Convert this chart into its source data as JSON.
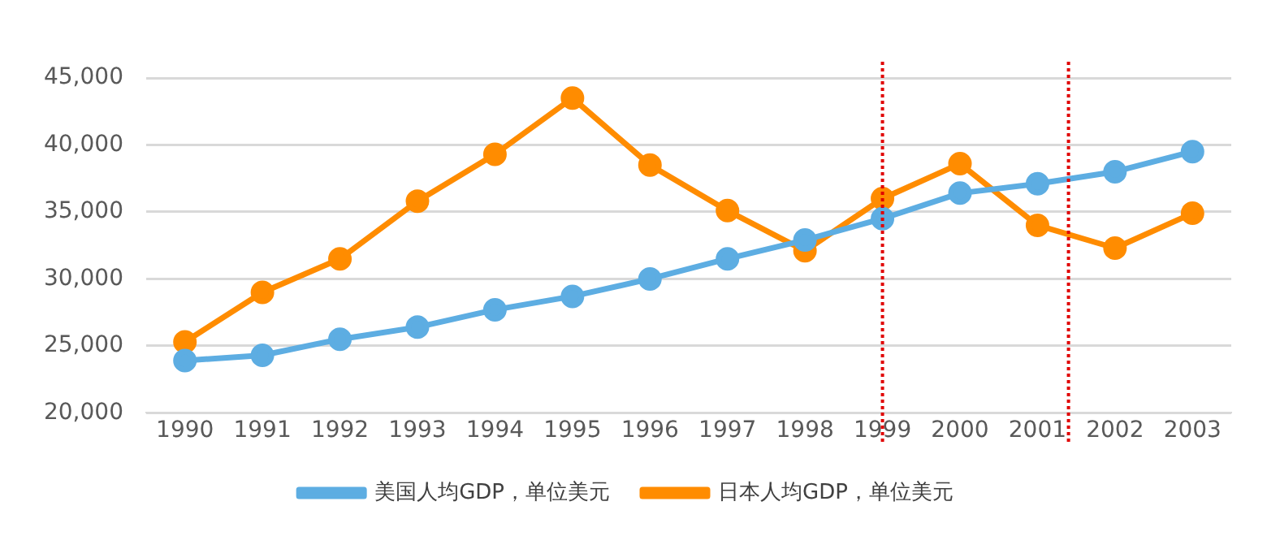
{
  "chart_data": {
    "type": "line",
    "x": [
      1990,
      1991,
      1992,
      1993,
      1994,
      1995,
      1996,
      1997,
      1998,
      1999,
      2000,
      2001,
      2002,
      2003
    ],
    "series": [
      {
        "name": "美国人均GDP，单位美元",
        "color": "#5dade2",
        "values": [
          23900,
          24300,
          25500,
          26400,
          27700,
          28700,
          30000,
          31500,
          32900,
          34500,
          36400,
          37100,
          38000,
          39500
        ]
      },
      {
        "name": "日本人均GDP，单位美元",
        "color": "#ff8c00",
        "values": [
          25300,
          29000,
          31500,
          35800,
          39300,
          43500,
          38500,
          35100,
          32100,
          36000,
          38600,
          34000,
          32300,
          34900
        ]
      }
    ],
    "xlim": [
      1989.5,
      2003.5
    ],
    "xticks": [
      1990,
      1991,
      1992,
      1993,
      1994,
      1995,
      1996,
      1997,
      1998,
      1999,
      2000,
      2001,
      2002,
      2003
    ],
    "ylim": [
      20000,
      45000
    ],
    "yticks": [
      {
        "value": 20000,
        "label": "20,000"
      },
      {
        "value": 25000,
        "label": "25,000"
      },
      {
        "value": 30000,
        "label": "30,000"
      },
      {
        "value": 35000,
        "label": "35,000"
      },
      {
        "value": 40000,
        "label": "40,000"
      },
      {
        "value": 45000,
        "label": "45,000"
      }
    ],
    "ref_lines": [
      {
        "axis": "x",
        "value": 1999,
        "color": "#e00000",
        "line_style": "dotted"
      },
      {
        "axis": "x",
        "value": 2001.4,
        "color": "#e00000",
        "line_style": "dotted"
      }
    ],
    "grid": "y",
    "legend": "bottom",
    "marker": "circle",
    "line_style": "solid"
  }
}
